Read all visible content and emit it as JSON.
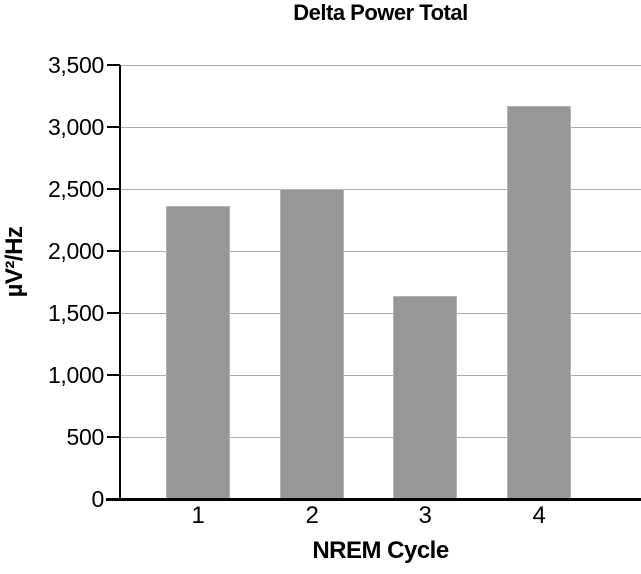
{
  "colors": {
    "background": "#ffffff",
    "text": "#000000",
    "axis": "#000000",
    "gridline": "#acacac",
    "bar_fill": "#979797",
    "bar_border": "#b4b4b4"
  },
  "chart_data": {
    "type": "bar",
    "title": "Delta Power Total",
    "categories": [
      "1",
      "2",
      "3",
      "4"
    ],
    "values": [
      2360,
      2500,
      1640,
      3170
    ],
    "xlabel": "NREM Cycle",
    "ylabel": "µV²/Hz",
    "ylim": [
      0,
      3500
    ],
    "ytick_step": 500,
    "yticks": [
      0,
      500,
      1000,
      1500,
      2000,
      2500,
      3000,
      3500
    ],
    "ytick_labels": [
      "0",
      "500",
      "1,000",
      "1,500",
      "2,000",
      "2,500",
      "3,000",
      "3,500"
    ],
    "grid": "horizontal",
    "legend": "none",
    "bar_color": "#979797"
  }
}
